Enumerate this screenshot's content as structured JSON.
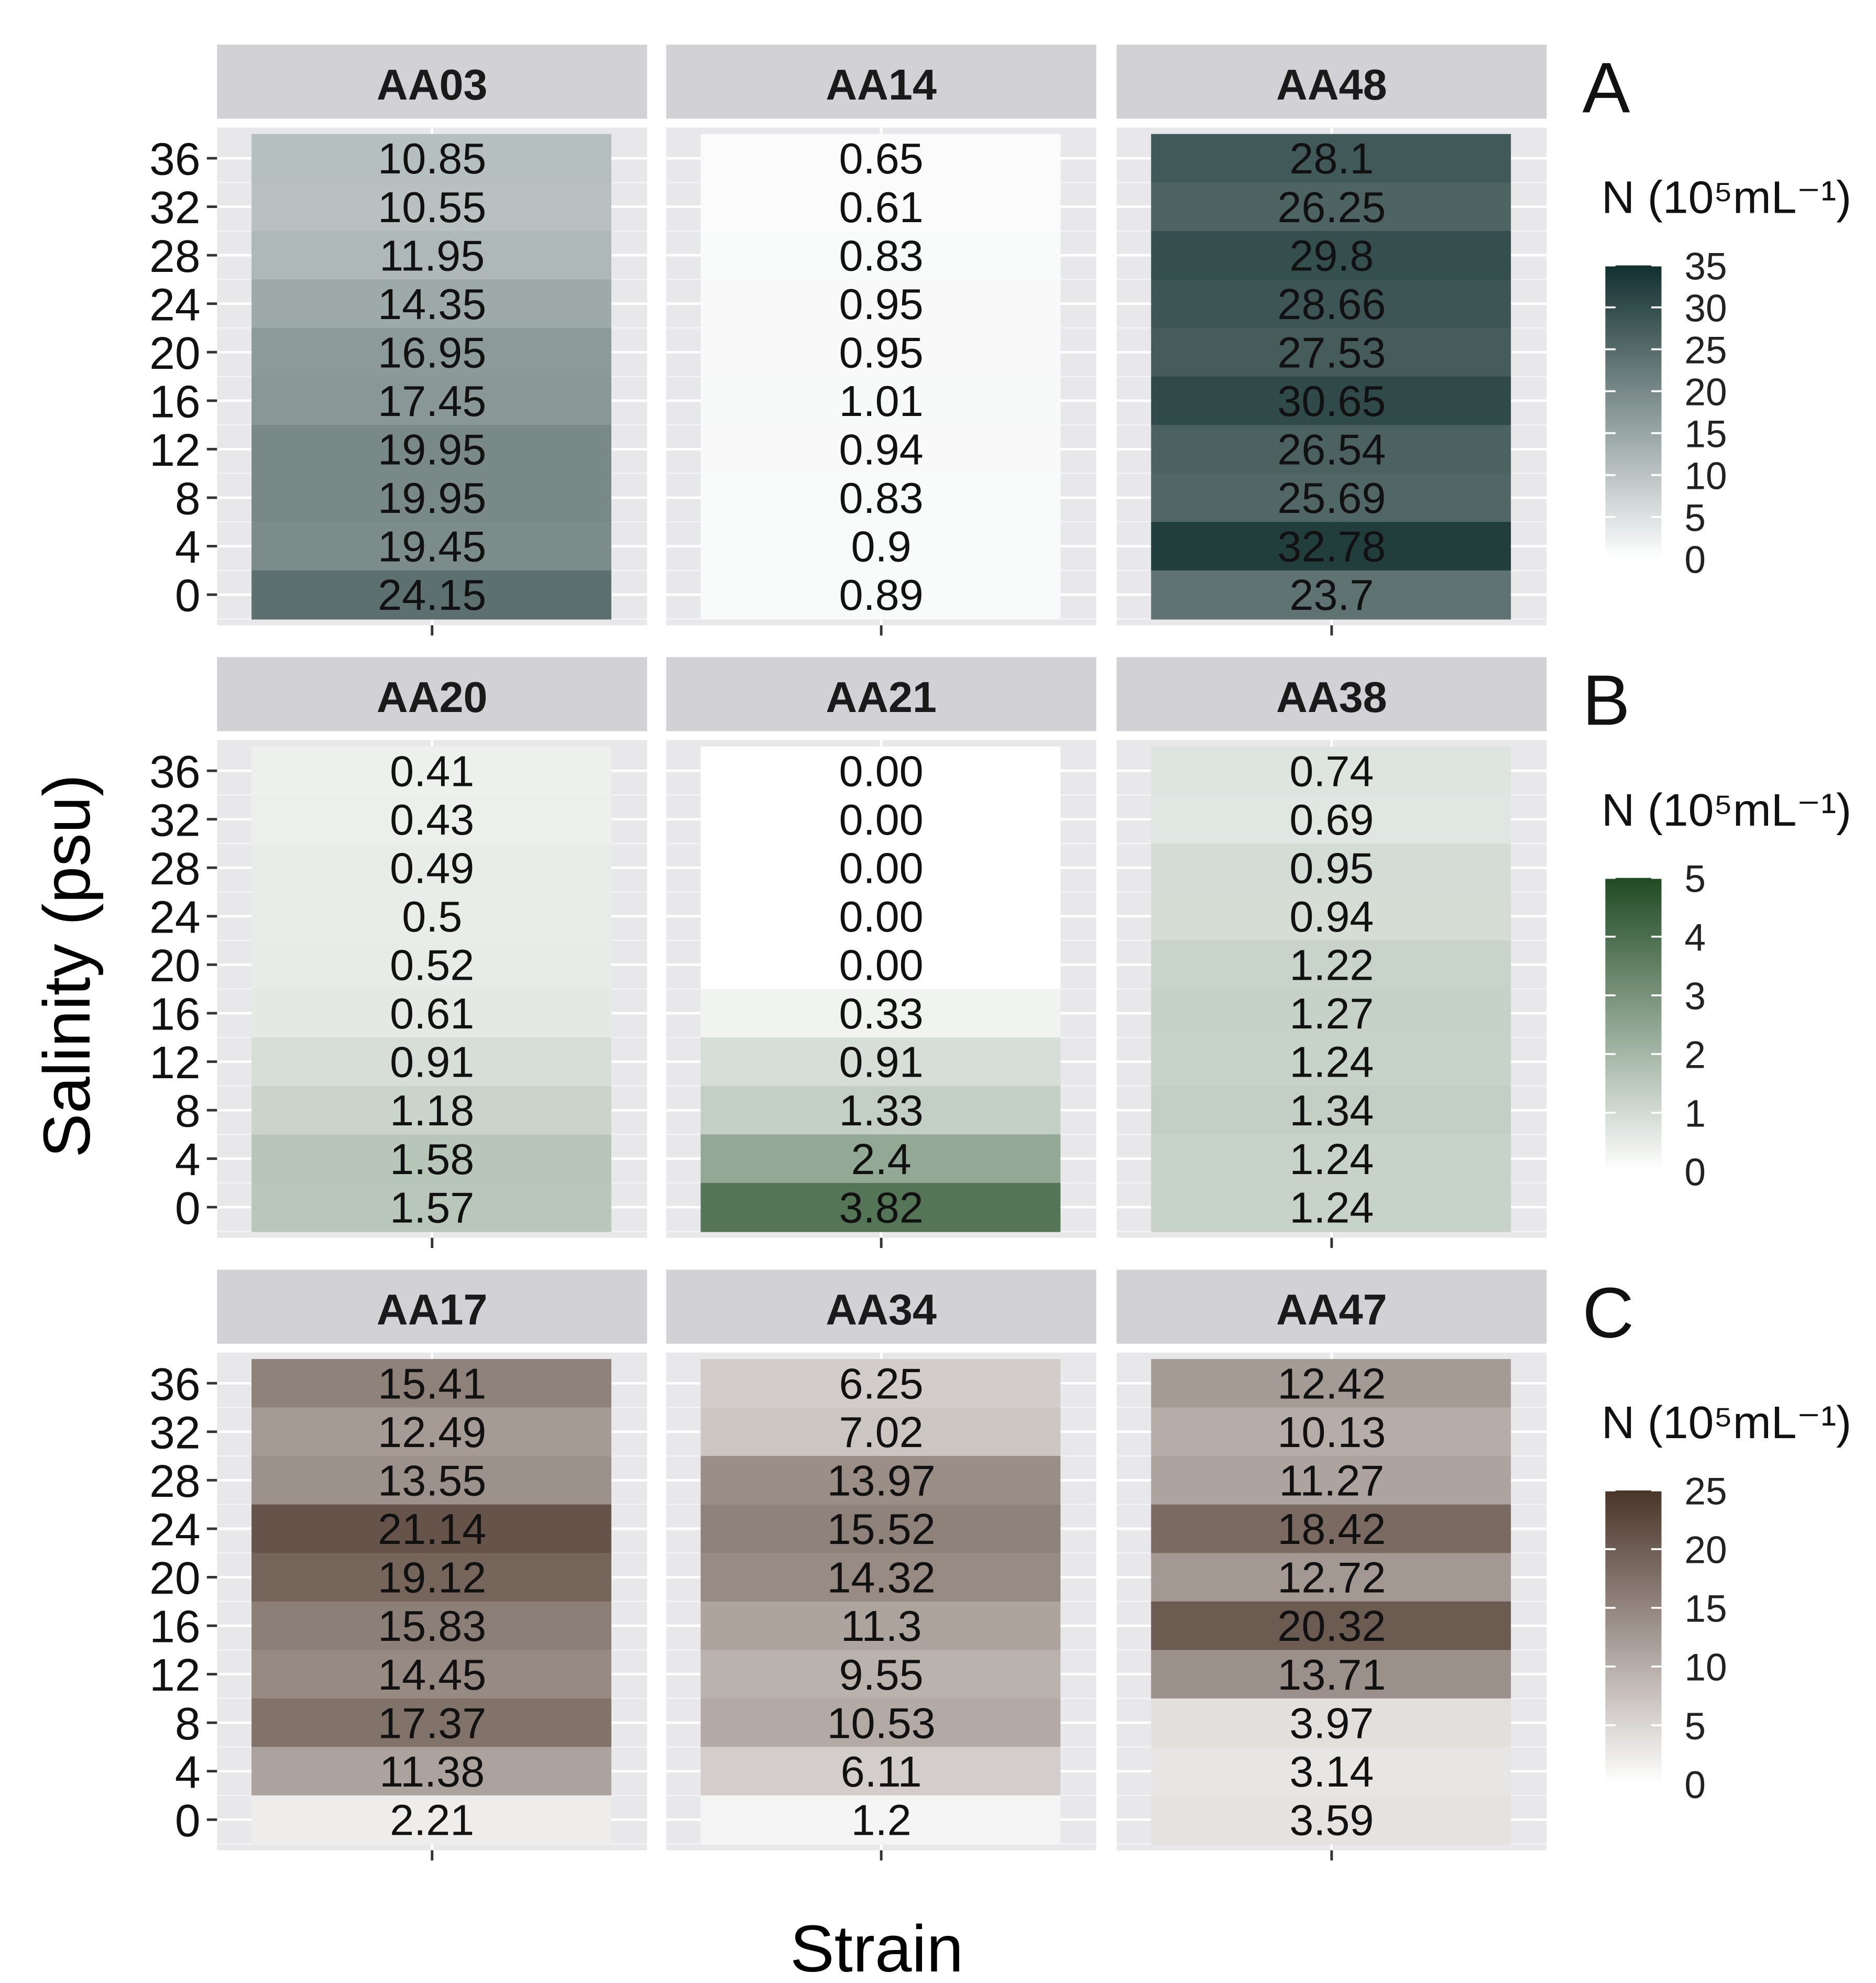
{
  "chart_data": {
    "type": "heatmap",
    "xlabel": "Strain",
    "ylabel": "Salinity (psu)",
    "y_ticks": [
      36,
      32,
      28,
      24,
      20,
      16,
      12,
      8,
      4,
      0
    ],
    "groups": [
      {
        "label": "A",
        "legend_title": "N (10⁵mL⁻¹)",
        "legend_ticks": [
          0,
          5,
          10,
          15,
          20,
          25,
          30,
          35
        ],
        "scale_max": 35,
        "high_color": "#12302f",
        "low_color": "#ffffff",
        "strains": [
          {
            "name": "AA03",
            "values": [
              10.85,
              10.55,
              11.95,
              14.35,
              16.95,
              17.45,
              19.95,
              19.95,
              19.45,
              24.15
            ]
          },
          {
            "name": "AA14",
            "values": [
              0.65,
              0.61,
              0.83,
              0.95,
              0.95,
              1.01,
              0.94,
              0.83,
              0.9,
              0.89
            ]
          },
          {
            "name": "AA48",
            "values": [
              28.1,
              26.25,
              29.8,
              28.66,
              27.53,
              30.65,
              26.54,
              25.69,
              32.78,
              23.7
            ]
          }
        ]
      },
      {
        "label": "B",
        "legend_title": "N (10⁵mL⁻¹)",
        "legend_ticks": [
          0,
          1,
          2,
          3,
          4,
          5
        ],
        "scale_max": 5,
        "high_color": "#1f4a22",
        "low_color": "#ffffff",
        "strains": [
          {
            "name": "AA20",
            "values": [
              "0.41",
              "0.43",
              "0.49",
              "0.5",
              "0.52",
              "0.61",
              "0.91",
              "1.18",
              "1.58",
              "1.57"
            ]
          },
          {
            "name": "AA21",
            "values": [
              "0.00",
              "0.00",
              "0.00",
              "0.00",
              "0.00",
              "0.33",
              "0.91",
              "1.33",
              "2.4",
              "3.82"
            ]
          },
          {
            "name": "AA38",
            "values": [
              "0.74",
              "0.69",
              "0.95",
              "0.94",
              "1.22",
              "1.27",
              "1.24",
              "1.34",
              "1.24",
              "1.24"
            ]
          }
        ]
      },
      {
        "label": "C",
        "legend_title": "N (10⁵mL⁻¹)",
        "legend_ticks": [
          0,
          5,
          10,
          15,
          20,
          25
        ],
        "scale_max": 25,
        "high_color": "#4a3529",
        "low_color": "#ffffff",
        "strains": [
          {
            "name": "AA17",
            "values": [
              15.41,
              12.49,
              13.55,
              21.14,
              19.12,
              15.83,
              14.45,
              17.37,
              11.38,
              2.21
            ]
          },
          {
            "name": "AA34",
            "values": [
              6.25,
              7.02,
              13.97,
              15.52,
              14.32,
              11.3,
              9.55,
              10.53,
              6.11,
              1.2
            ]
          },
          {
            "name": "AA47",
            "values": [
              12.42,
              10.13,
              11.27,
              18.42,
              12.72,
              20.32,
              13.71,
              3.97,
              3.14,
              3.59
            ]
          }
        ]
      }
    ],
    "colors": {
      "panel_bg": "#e8e8ea",
      "strip_bg": "#d2d2d6",
      "grid": "#ffffff"
    }
  }
}
